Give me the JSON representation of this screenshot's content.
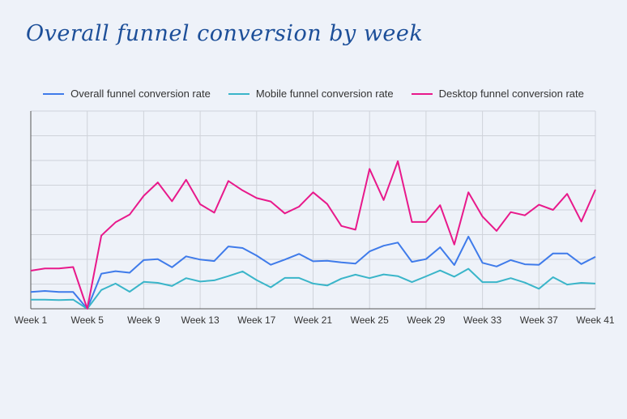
{
  "title": "Overall funnel conversion by week",
  "chart_data": {
    "type": "line",
    "title": "Overall funnel conversion by week",
    "xlabel": "",
    "ylabel": "",
    "y_tick_labels_shown": false,
    "ylim": [
      0,
      8
    ],
    "grid": true,
    "legend_position": "top",
    "x": [
      "Week 1",
      "Week 2",
      "Week 3",
      "Week 4",
      "Week 5",
      "Week 6",
      "Week 7",
      "Week 8",
      "Week 9",
      "Week 10",
      "Week 11",
      "Week 12",
      "Week 13",
      "Week 14",
      "Week 15",
      "Week 16",
      "Week 17",
      "Week 18",
      "Week 19",
      "Week 20",
      "Week 21",
      "Week 22",
      "Week 23",
      "Week 24",
      "Week 25",
      "Week 26",
      "Week 27",
      "Week 28",
      "Week 29",
      "Week 30",
      "Week 31",
      "Week 32",
      "Week 33",
      "Week 34",
      "Week 35",
      "Week 36",
      "Week 37",
      "Week 38",
      "Week 39",
      "Week 40",
      "Week 41"
    ],
    "x_tick_labels": [
      "Week 1",
      "Week 5",
      "Week 9",
      "Week 13",
      "Week 17",
      "Week 21",
      "Week 25",
      "Week 29",
      "Week 33",
      "Week 37",
      "Week 41"
    ],
    "series": [
      {
        "name": "Overall funnel conversion rate",
        "color": "#3f7bea",
        "values": [
          0.68,
          0.72,
          0.68,
          0.68,
          0,
          1.42,
          1.52,
          1.46,
          1.97,
          2.01,
          1.68,
          2.12,
          1.99,
          1.93,
          2.52,
          2.46,
          2.15,
          1.78,
          1.99,
          2.22,
          1.92,
          1.94,
          1.88,
          1.83,
          2.32,
          2.55,
          2.68,
          1.9,
          2.01,
          2.49,
          1.77,
          2.92,
          1.86,
          1.71,
          1.97,
          1.8,
          1.78,
          2.24,
          2.24,
          1.81,
          2.1
        ]
      },
      {
        "name": "Mobile funnel conversion rate",
        "color": "#3ab5c9",
        "values": [
          0.37,
          0.37,
          0.35,
          0.37,
          0,
          0.76,
          1.02,
          0.69,
          1.09,
          1.05,
          0.92,
          1.24,
          1.1,
          1.15,
          1.32,
          1.51,
          1.16,
          0.87,
          1.25,
          1.25,
          1.02,
          0.94,
          1.22,
          1.38,
          1.24,
          1.39,
          1.32,
          1.08,
          1.31,
          1.55,
          1.3,
          1.62,
          1.08,
          1.08,
          1.24,
          1.06,
          0.81,
          1.28,
          0.98,
          1.05,
          1.02
        ]
      },
      {
        "name": "Desktop funnel conversion rate",
        "color": "#e8198b",
        "values": [
          1.54,
          1.63,
          1.63,
          1.69,
          0,
          2.96,
          3.5,
          3.81,
          4.57,
          5.11,
          4.35,
          5.22,
          4.23,
          3.89,
          5.17,
          4.79,
          4.48,
          4.34,
          3.86,
          4.13,
          4.71,
          4.24,
          3.35,
          3.2,
          5.66,
          4.4,
          5.97,
          3.51,
          3.51,
          4.19,
          2.6,
          4.71,
          3.73,
          3.15,
          3.91,
          3.78,
          4.21,
          4.0,
          4.65,
          3.53,
          4.82
        ]
      }
    ]
  }
}
